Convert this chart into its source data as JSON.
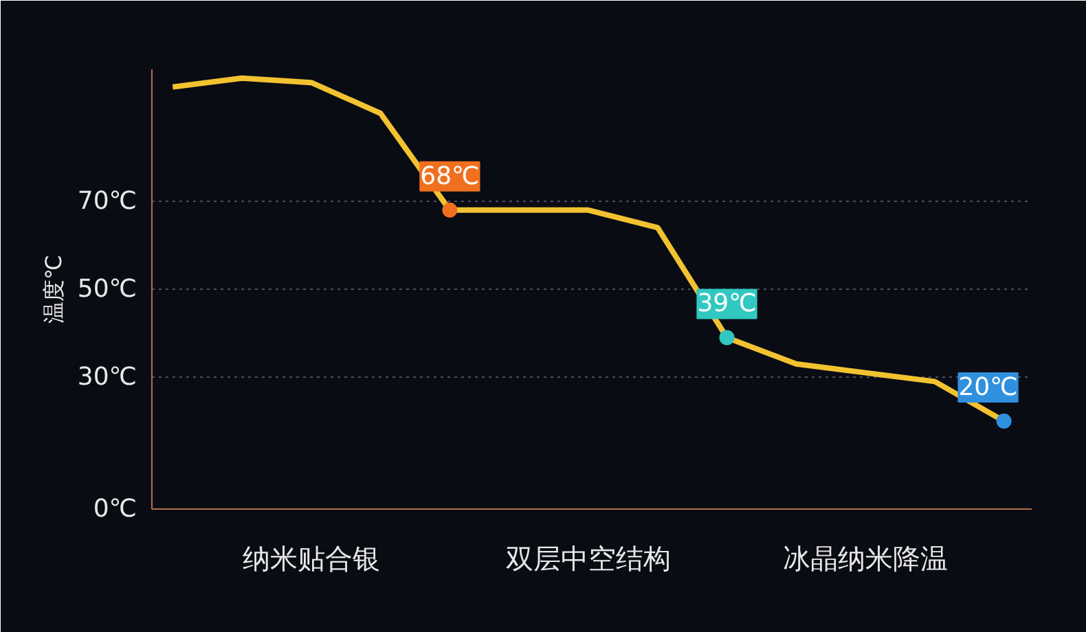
{
  "chart_data": {
    "type": "line",
    "ylabel": "温度℃",
    "categories": [
      null,
      null,
      "纳米贴合银",
      null,
      null,
      null,
      "双层中空结构",
      null,
      null,
      null,
      "冰晶纳米降温",
      null,
      null
    ],
    "series": [
      {
        "color": "#f2c230",
        "values": [
          96,
          98,
          97,
          90,
          68,
          68,
          68,
          64,
          39,
          33,
          31,
          29,
          20
        ]
      }
    ],
    "ylim": [
      0,
      100
    ],
    "yticks": [
      {
        "value": 0,
        "label": "0℃"
      },
      {
        "value": 30,
        "label": "30℃"
      },
      {
        "value": 50,
        "label": "50℃"
      },
      {
        "value": 70,
        "label": "70℃"
      }
    ],
    "annotations": [
      "68℃",
      "39℃",
      "20℃"
    ],
    "grid": "y",
    "line_style": "solid",
    "marker": "none"
  }
}
